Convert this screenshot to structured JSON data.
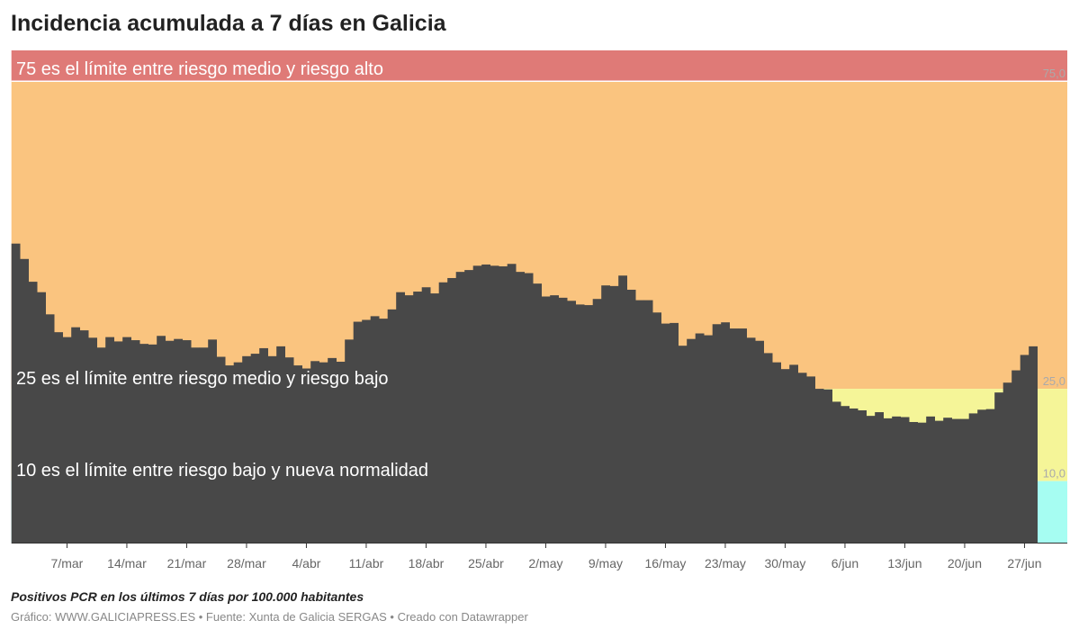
{
  "title": "Incidencia acumulada a 7 días en Galicia",
  "notes": "Positivos PCR en los últimos 7 días por 100.000 habitantes",
  "source": "Gráfico: WWW.GALICIAPRESS.ES • Fuente: Xunta de Galicia SERGAS • Creado con Datawrapper",
  "chart_data": {
    "type": "bar",
    "title": "Incidencia acumulada a 7 días en Galicia",
    "xlabel": "",
    "ylabel": "",
    "ylim": [
      0,
      80
    ],
    "bar_color": "#484848",
    "x": [
      "1/mar",
      "2/mar",
      "3/mar",
      "4/mar",
      "5/mar",
      "6/mar",
      "7/mar",
      "8/mar",
      "9/mar",
      "10/mar",
      "11/mar",
      "12/mar",
      "13/mar",
      "14/mar",
      "15/mar",
      "16/mar",
      "17/mar",
      "18/mar",
      "19/mar",
      "20/mar",
      "21/mar",
      "22/mar",
      "23/mar",
      "24/mar",
      "25/mar",
      "26/mar",
      "27/mar",
      "28/mar",
      "29/mar",
      "30/mar",
      "31/mar",
      "1/abr",
      "2/abr",
      "3/abr",
      "4/abr",
      "5/abr",
      "6/abr",
      "7/abr",
      "8/abr",
      "9/abr",
      "10/abr",
      "11/abr",
      "12/abr",
      "13/abr",
      "14/abr",
      "15/abr",
      "16/abr",
      "17/abr",
      "18/abr",
      "19/abr",
      "20/abr",
      "21/abr",
      "22/abr",
      "23/abr",
      "24/abr",
      "25/abr",
      "26/abr",
      "27/abr",
      "28/abr",
      "29/abr",
      "30/abr",
      "1/may",
      "2/may",
      "3/may",
      "4/may",
      "5/may",
      "6/may",
      "7/may",
      "8/may",
      "9/may",
      "10/may",
      "11/may",
      "12/may",
      "13/may",
      "14/may",
      "15/may",
      "16/may",
      "17/may",
      "18/may",
      "19/may",
      "20/may",
      "21/may",
      "22/may",
      "23/may",
      "24/may",
      "25/may",
      "26/may",
      "27/may",
      "28/may",
      "29/may",
      "30/may",
      "31/may",
      "1/jun",
      "2/jun",
      "3/jun",
      "4/jun",
      "5/jun",
      "6/jun",
      "7/jun",
      "8/jun",
      "9/jun",
      "10/jun",
      "11/jun",
      "12/jun",
      "13/jun",
      "14/jun",
      "15/jun",
      "16/jun",
      "17/jun",
      "18/jun",
      "19/jun",
      "20/jun",
      "21/jun",
      "22/jun",
      "23/jun",
      "24/jun",
      "25/jun",
      "26/jun",
      "27/jun",
      "28/jun"
    ],
    "values": [
      48.6,
      46.1,
      42.4,
      40.7,
      37.1,
      34.2,
      33.4,
      35.0,
      34.5,
      33.3,
      31.7,
      33.4,
      32.7,
      33.4,
      32.9,
      32.3,
      32.2,
      33.6,
      32.8,
      33.1,
      32.9,
      31.7,
      31.7,
      33.0,
      30.2,
      28.8,
      29.3,
      30.3,
      30.7,
      31.6,
      30.3,
      31.9,
      30.1,
      28.8,
      28.3,
      29.5,
      29.3,
      30.0,
      29.4,
      33.0,
      35.9,
      36.2,
      36.8,
      36.4,
      37.9,
      40.7,
      40.2,
      40.8,
      41.5,
      40.5,
      42.3,
      43.0,
      44.0,
      44.3,
      45.0,
      45.2,
      45.0,
      44.9,
      45.3,
      44.0,
      43.8,
      42.1,
      40.0,
      40.2,
      39.8,
      39.3,
      38.7,
      38.6,
      39.6,
      41.8,
      41.7,
      43.4,
      41.1,
      39.4,
      39.4,
      37.4,
      35.6,
      35.7,
      32.0,
      33.1,
      34.0,
      33.7,
      35.5,
      35.8,
      34.8,
      34.8,
      33.3,
      32.8,
      30.8,
      29.3,
      28.2,
      28.9,
      27.6,
      27.0,
      25.0,
      24.9,
      22.9,
      22.2,
      21.8,
      21.5,
      20.6,
      21.2,
      20.2,
      20.5,
      20.4,
      19.6,
      19.5,
      20.5,
      19.8,
      20.3,
      20.1,
      20.1,
      21.0,
      21.6,
      21.7,
      24.4,
      26.0,
      28.0,
      30.5,
      31.9
    ],
    "x_ticks": [
      "7/mar",
      "14/mar",
      "21/mar",
      "28/mar",
      "4/abr",
      "11/abr",
      "18/abr",
      "25/abr",
      "2/may",
      "9/may",
      "16/may",
      "23/may",
      "30/may",
      "6/jun",
      "13/jun",
      "20/jun",
      "27/jun"
    ],
    "bands": [
      {
        "from": 75,
        "to": 80,
        "color": "#df7a77"
      },
      {
        "from": 25,
        "to": 75,
        "color": "#fac47f"
      },
      {
        "from": 10,
        "to": 25,
        "color": "#f5f598"
      },
      {
        "from": 0,
        "to": 10,
        "color": "#a6fdf2"
      }
    ],
    "reference_lines": [
      {
        "value": 75,
        "label": "75,0",
        "annotation": "75 es el límite entre riesgo medio y riesgo alto"
      },
      {
        "value": 25,
        "label": "25,0",
        "annotation": "25 es el límite entre riesgo medio y riesgo bajo"
      },
      {
        "value": 10,
        "label": "10,0",
        "annotation": "10 es el límite entre riesgo bajo y nueva normalidad"
      }
    ],
    "grid": false,
    "legend": "none"
  }
}
